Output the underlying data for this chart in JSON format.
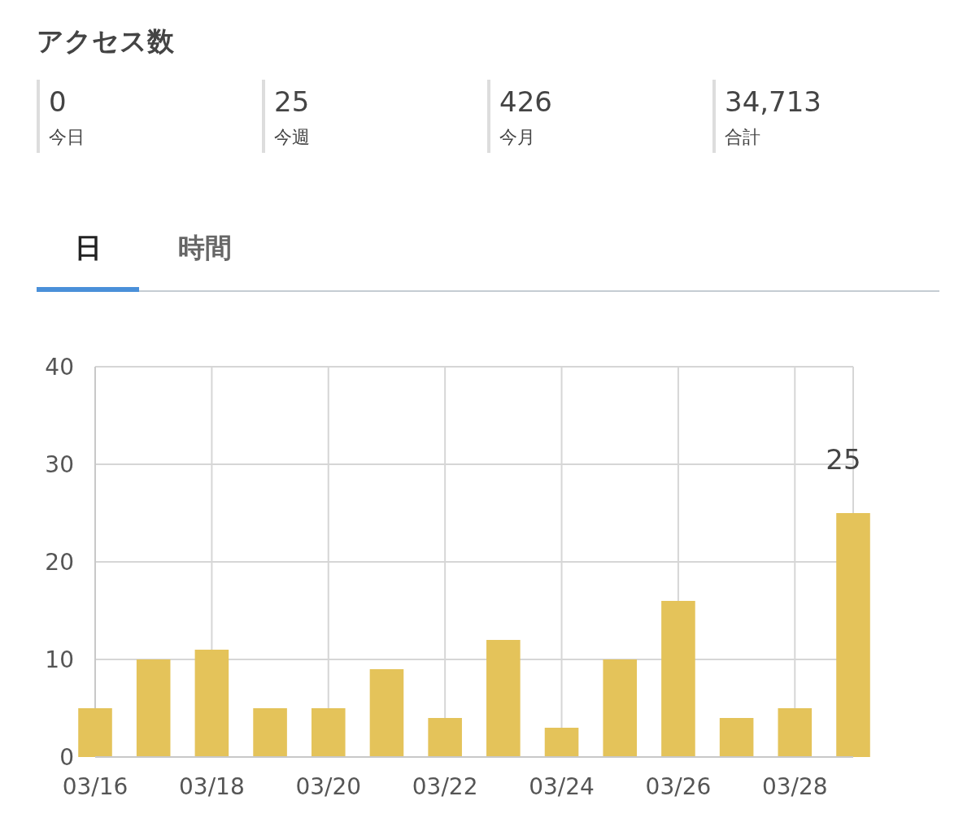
{
  "chart_data": [
    {
      "type": "other",
      "title": "アクセス数",
      "annotations": [
        "0",
        "今日",
        "25",
        "今週",
        "426",
        "今月",
        "34,713",
        "合計",
        "日",
        "時間"
      ]
    },
    {
      "type": "bar",
      "x": [
        "--03-16",
        "--03-17",
        "--03-18",
        "--03-19",
        "--03-20",
        "--03-21",
        "--03-22",
        "--03-23",
        "--03-24",
        "--03-25",
        "--03-26",
        "--03-27",
        "--03-28",
        "--03-29"
      ],
      "values": [
        5,
        10,
        11,
        5,
        5,
        9,
        4,
        12,
        3,
        10,
        16,
        4,
        5,
        25
      ],
      "value_labels": [
        null,
        null,
        null,
        null,
        null,
        null,
        null,
        null,
        null,
        null,
        null,
        null,
        null,
        "25"
      ],
      "color": "#e4c35a",
      "xlim": [
        "--03-16",
        "--03-29"
      ],
      "xticks": [
        {
          "value": "--03-16",
          "label": "03/16"
        },
        {
          "value": "--03-18",
          "label": "03/18"
        },
        {
          "value": "--03-20",
          "label": "03/20"
        },
        {
          "value": "--03-22",
          "label": "03/22"
        },
        {
          "value": "--03-24",
          "label": "03/24"
        },
        {
          "value": "--03-26",
          "label": "03/26"
        },
        {
          "value": "--03-28",
          "label": "03/28"
        }
      ],
      "ylim": [
        0,
        40
      ],
      "yticks": [
        0,
        10,
        20,
        30,
        40
      ],
      "grid": true
    }
  ]
}
